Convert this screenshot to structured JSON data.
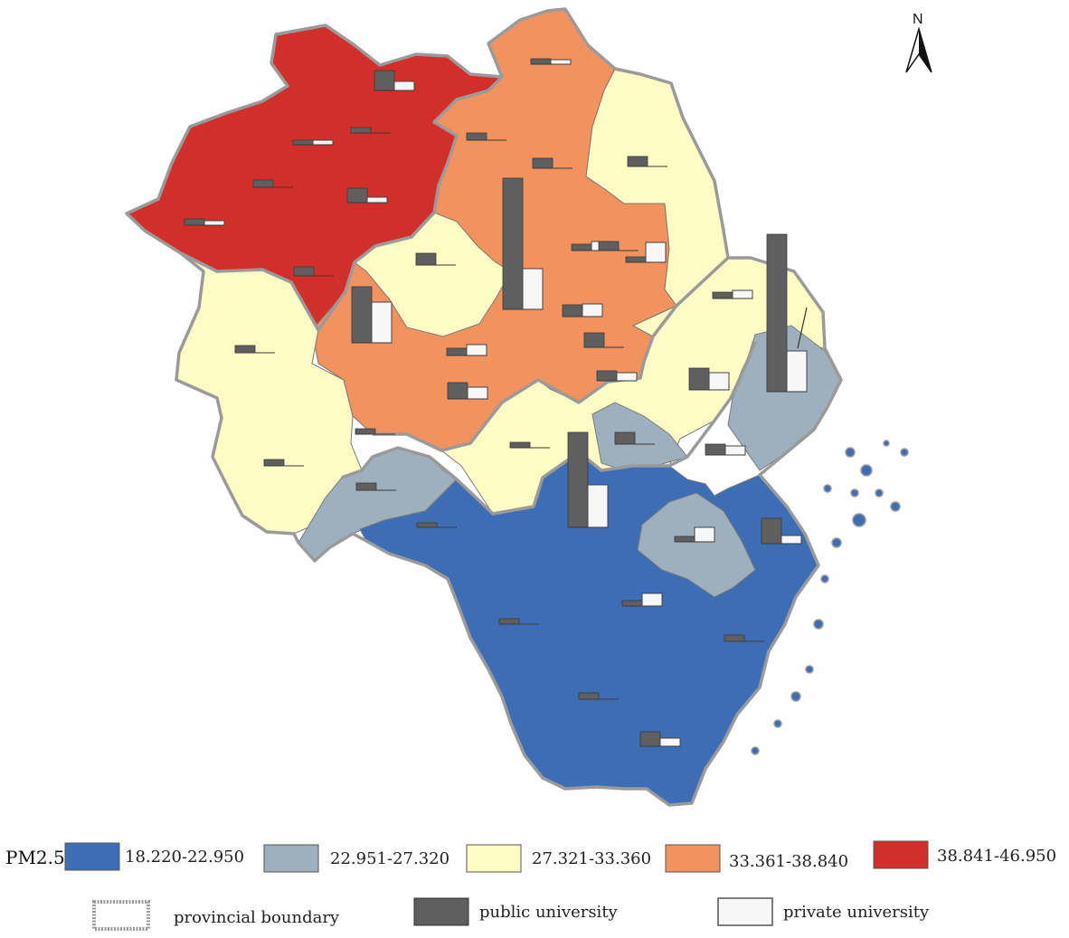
{
  "north_label": "N",
  "legend": {
    "title": "PM2.5",
    "classes": [
      {
        "label": "18.220-22.950",
        "color": "#3c6db5"
      },
      {
        "label": "22.951-27.320",
        "color": "#9eb0bd"
      },
      {
        "label": "27.321-33.360",
        "color": "#fdfcc4"
      },
      {
        "label": "33.361-38.840",
        "color": "#f1925f"
      },
      {
        "label": "38.841-46.950",
        "color": "#d22f2a"
      }
    ],
    "items": [
      {
        "label": "provincial boundary"
      },
      {
        "label": "public university",
        "color": "#5f5f5f"
      },
      {
        "label": "private university",
        "color": "#f7f7f7"
      }
    ]
  }
}
